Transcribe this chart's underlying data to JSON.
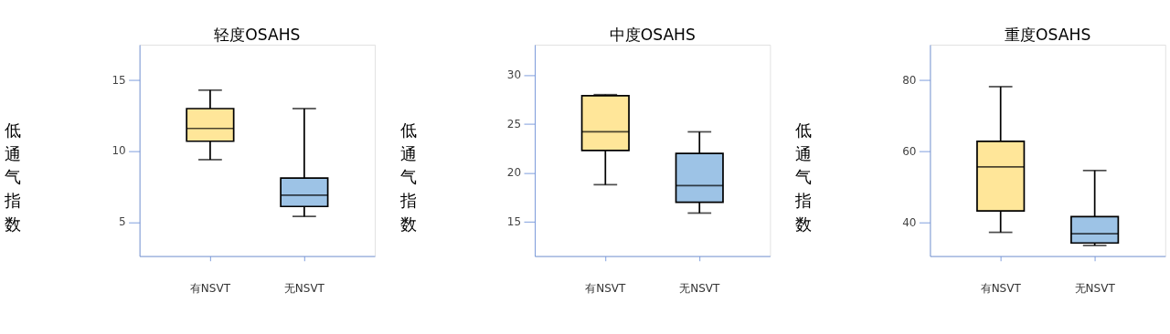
{
  "chart_data": [
    {
      "type": "box",
      "title": "轻度OSAHS",
      "ylabel": "低通气指数",
      "categories": [
        "有NSVT",
        "无NSVT"
      ],
      "colors": [
        "#ffe699",
        "#9dc3e6"
      ],
      "ylim": [
        2.6,
        17.5
      ],
      "yticks": [
        5,
        10,
        15
      ],
      "grid": false,
      "boxes": [
        {
          "low": 9.4,
          "q1": 10.7,
          "median": 11.6,
          "q3": 13.0,
          "high": 14.3
        },
        {
          "low": 5.4,
          "q1": 6.1,
          "median": 6.9,
          "q3": 8.1,
          "high": 13.0
        }
      ]
    },
    {
      "type": "box",
      "title": "中度OSAHS",
      "ylabel": "低通气指数",
      "categories": [
        "有NSVT",
        "无NSVT"
      ],
      "colors": [
        "#ffe699",
        "#9dc3e6"
      ],
      "ylim": [
        11.5,
        33.1
      ],
      "yticks": [
        15,
        20,
        25,
        30
      ],
      "grid": false,
      "boxes": [
        {
          "low": 18.8,
          "q1": 22.3,
          "median": 24.2,
          "q3": 27.9,
          "high": 28.0
        },
        {
          "low": 15.9,
          "q1": 17.0,
          "median": 18.7,
          "q3": 22.0,
          "high": 24.2
        }
      ]
    },
    {
      "type": "box",
      "title": "重度OSAHS",
      "ylabel": "低通气指数",
      "categories": [
        "有NSVT",
        "无NSVT"
      ],
      "colors": [
        "#ffe699",
        "#9dc3e6"
      ],
      "ylim": [
        30.5,
        90
      ],
      "yticks": [
        40,
        60,
        80
      ],
      "grid": false,
      "boxes": [
        {
          "low": 37.2,
          "q1": 43.2,
          "median": 55.6,
          "q3": 62.8,
          "high": 78.2
        },
        {
          "low": 33.5,
          "q1": 34.2,
          "median": 36.8,
          "q3": 41.6,
          "high": 54.6
        }
      ]
    }
  ]
}
